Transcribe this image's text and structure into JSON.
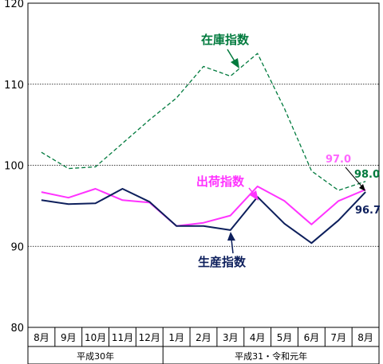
{
  "chart_data": {
    "type": "line",
    "categories": [
      "8月",
      "9月",
      "10月",
      "11月",
      "12月",
      "1月",
      "2月",
      "3月",
      "4月",
      "5月",
      "6月",
      "7月",
      "8月"
    ],
    "year_groups": [
      {
        "label": "平成30年",
        "start": 0,
        "end": 4
      },
      {
        "label": "平成31・令和元年",
        "start": 5,
        "end": 12
      }
    ],
    "ylim": [
      80,
      120
    ],
    "yticks": [
      80,
      90,
      100,
      110,
      120
    ],
    "grid": true,
    "series": [
      {
        "name": "在庫指数",
        "color": "#007a3d",
        "dash": true,
        "values": [
          101.6,
          99.6,
          99.8,
          102.7,
          105.6,
          108.3,
          112.2,
          111.0,
          113.8,
          107.0,
          99.3,
          96.9,
          98.0
        ]
      },
      {
        "name": "出荷指数",
        "color": "#ff33ff",
        "dash": false,
        "values": [
          96.7,
          96.0,
          97.1,
          95.7,
          95.4,
          92.5,
          92.9,
          93.8,
          97.4,
          95.6,
          92.7,
          95.6,
          97.0
        ]
      },
      {
        "name": "生産指数",
        "color": "#0d1f5c",
        "dash": false,
        "values": [
          95.7,
          95.2,
          95.3,
          97.1,
          95.5,
          92.5,
          92.5,
          92.0,
          96.1,
          92.8,
          90.4,
          93.2,
          96.7
        ]
      }
    ],
    "annotations": {
      "inventory_label": "在庫指数",
      "shipment_label": "出荷指数",
      "production_label": "生産指数",
      "last_inventory": "98.0",
      "last_shipment": "97.0",
      "last_production": "96.7"
    }
  }
}
